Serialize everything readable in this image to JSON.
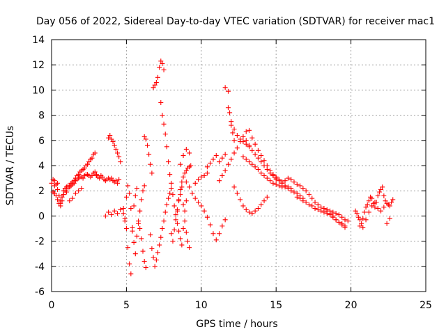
{
  "chart_data": {
    "type": "scatter",
    "title": "Day 056 of 2022, Sidereal Day-to-day VTEC variation (SDTVAR) for receiver mac1",
    "xlabel": "GPS time / hours",
    "ylabel": "SDTVAR / TECUs",
    "xlim": [
      0,
      25
    ],
    "ylim": [
      -6,
      14
    ],
    "xticks": [
      "0",
      "5",
      "10",
      "15",
      "20",
      "25"
    ],
    "yticks": [
      "-6",
      "-4",
      "-2",
      "0",
      "2",
      "4",
      "6",
      "8",
      "10",
      "12",
      "14"
    ],
    "grid": true,
    "marker": "+",
    "color": "#ff0000",
    "series": [
      {
        "name": "mac1",
        "x": [
          0.0,
          0.1,
          0.2,
          0.3,
          0.4,
          0.5,
          0.6,
          0.7,
          0.8,
          0.9,
          1.0,
          1.1,
          1.2,
          1.3,
          1.4,
          1.5,
          1.6,
          1.7,
          1.8,
          1.9,
          2.0,
          2.1,
          2.2,
          2.3,
          2.4,
          2.5,
          2.6,
          2.7,
          2.8,
          2.9,
          3.0,
          3.1,
          3.2,
          3.3,
          3.4,
          3.5,
          3.6,
          3.7,
          3.8,
          3.9,
          4.0,
          4.1,
          4.2,
          4.3,
          4.4,
          4.5,
          0.1,
          0.2,
          0.3,
          0.4,
          0.5,
          0.6,
          0.7,
          0.8,
          0.9,
          1.0,
          1.1,
          1.2,
          1.3,
          1.4,
          1.5,
          1.6,
          1.7,
          1.8,
          1.9,
          2.0,
          2.1,
          2.2,
          2.3,
          2.4,
          2.5,
          2.6,
          2.7,
          2.8,
          2.9,
          3.0,
          0.2,
          0.4,
          0.6,
          0.8,
          1.0,
          1.2,
          1.4,
          1.6,
          1.8,
          2.0,
          3.8,
          3.9,
          4.0,
          4.1,
          4.2,
          4.3,
          4.4,
          4.5,
          4.6,
          3.6,
          3.8,
          4.0,
          4.2,
          4.4,
          4.6,
          4.8,
          4.9,
          5.0,
          5.1,
          5.2,
          5.3,
          5.4,
          5.5,
          5.6,
          5.7,
          5.8,
          5.9,
          6.0,
          6.1,
          6.2,
          6.3,
          4.8,
          4.9,
          5.0,
          5.1,
          5.2,
          5.3,
          5.4,
          5.5,
          5.6,
          5.7,
          5.8,
          5.9,
          6.0,
          6.1,
          6.2,
          6.2,
          6.3,
          6.4,
          6.5,
          6.6,
          6.7,
          6.8,
          6.9,
          7.0,
          7.1,
          7.2,
          7.3,
          7.4,
          7.5,
          7.3,
          7.4,
          7.5,
          7.6,
          7.7,
          7.8,
          7.9,
          8.0,
          8.1,
          8.2,
          8.3,
          8.4,
          8.5,
          8.6,
          8.7,
          8.8,
          8.9,
          9.0,
          6.6,
          6.7,
          6.8,
          6.9,
          7.0,
          7.1,
          7.2,
          7.3,
          7.4,
          7.5,
          7.6,
          7.7,
          7.8,
          7.9,
          8.0,
          8.0,
          8.1,
          8.2,
          8.3,
          8.4,
          8.5,
          8.6,
          8.7,
          8.8,
          8.9,
          9.0,
          9.1,
          9.2,
          8.4,
          8.5,
          8.6,
          8.7,
          8.8,
          8.9,
          9.0,
          9.1,
          9.2,
          9.3,
          8.6,
          8.8,
          9.0,
          9.2,
          9.0,
          9.2,
          9.4,
          9.6,
          9.8,
          10.0,
          10.2,
          10.4,
          10.6,
          10.8,
          11.0,
          11.2,
          11.4,
          11.6,
          9.6,
          9.8,
          10.0,
          10.2,
          10.4,
          10.4,
          10.6,
          10.8,
          11.0,
          11.2,
          11.4,
          11.6,
          11.2,
          11.4,
          11.6,
          11.8,
          12.0,
          12.2,
          12.4,
          12.6,
          12.8,
          13.0,
          13.2,
          13.4,
          13.6,
          13.8,
          14.0,
          14.2,
          14.4,
          14.6,
          14.8,
          15.0,
          11.8,
          11.9,
          12.0,
          12.1,
          12.2,
          11.6,
          11.8,
          12.0,
          12.2,
          12.4,
          12.6,
          12.8,
          13.0,
          13.2,
          12.2,
          12.4,
          12.6,
          12.8,
          13.0,
          13.2,
          13.4,
          13.6,
          13.8,
          14.0,
          14.2,
          14.4,
          12.8,
          13.0,
          13.2,
          13.4,
          13.6,
          13.8,
          14.0,
          14.2,
          14.4,
          14.6,
          14.8,
          15.0,
          15.2,
          15.4,
          15.6,
          15.8,
          16.0,
          16.2,
          16.4,
          16.6,
          16.8,
          13.0,
          13.2,
          13.4,
          13.6,
          13.8,
          14.0,
          14.2,
          14.4,
          14.6,
          14.8,
          15.0,
          15.2,
          15.4,
          15.6,
          15.8,
          16.0,
          14.8,
          15.0,
          15.2,
          15.4,
          15.6,
          15.8,
          16.0,
          16.2,
          16.4,
          16.6,
          16.8,
          17.0,
          17.2,
          17.4,
          17.6,
          17.8,
          18.0,
          18.2,
          18.4,
          18.6,
          18.8,
          19.0,
          19.2,
          19.4,
          19.6,
          16.4,
          16.6,
          16.8,
          17.0,
          17.2,
          17.4,
          17.6,
          17.8,
          18.0,
          18.2,
          18.4,
          18.6,
          18.8,
          19.0,
          19.2,
          19.4,
          19.6,
          18.2,
          18.4,
          18.6,
          18.8,
          19.0,
          19.2,
          19.4,
          19.6,
          19.8,
          20.3,
          20.4,
          20.5,
          20.6,
          20.7,
          20.8,
          20.9,
          21.0,
          21.1,
          21.2,
          21.3,
          21.4,
          21.5,
          21.6,
          21.7,
          21.8,
          21.9,
          22.0,
          22.1,
          22.2,
          22.3,
          22.4,
          22.5,
          22.6,
          22.7,
          22.8,
          20.6,
          20.8,
          21.0,
          21.2,
          21.4,
          21.6,
          21.8,
          22.0,
          22.2,
          22.4,
          22.6
        ],
        "y": [
          2.6,
          2.9,
          2.8,
          2.5,
          2.1,
          1.6,
          1.2,
          1.5,
          2.0,
          2.2,
          2.3,
          2.4,
          2.3,
          2.4,
          2.5,
          2.6,
          2.8,
          2.9,
          3.0,
          3.1,
          3.1,
          3.0,
          3.2,
          3.3,
          3.3,
          3.2,
          3.1,
          3.2,
          3.4,
          3.5,
          3.3,
          3.1,
          3.0,
          3.2,
          3.1,
          2.9,
          2.8,
          2.9,
          3.0,
          2.9,
          3.0,
          2.8,
          2.7,
          2.8,
          2.6,
          2.9,
          1.9,
          1.8,
          1.6,
          1.3,
          1.0,
          0.8,
          1.2,
          1.7,
          2.0,
          1.9,
          2.2,
          2.4,
          2.6,
          2.7,
          2.8,
          3.0,
          3.2,
          3.3,
          3.5,
          3.6,
          3.7,
          3.8,
          4.0,
          4.1,
          4.3,
          4.5,
          4.6,
          4.9,
          5.0,
          3.2,
          2.4,
          2.6,
          1.0,
          1.7,
          1.9,
          1.2,
          1.4,
          1.8,
          2.0,
          2.2,
          6.2,
          6.4,
          6.1,
          5.9,
          5.6,
          5.3,
          5.0,
          4.7,
          4.3,
          0.0,
          0.3,
          0.1,
          0.4,
          0.2,
          0.5,
          0.6,
          -0.2,
          -1.0,
          -2.5,
          -3.8,
          -4.6,
          -1.2,
          0.8,
          1.6,
          2.2,
          -0.4,
          -1.0,
          -1.8,
          -2.8,
          -3.6,
          -4.1,
          0.2,
          -0.4,
          1.5,
          2.4,
          1.8,
          0.6,
          -0.9,
          -2.1,
          -3.0,
          -1.6,
          -0.6,
          0.4,
          1.3,
          2.0,
          2.4,
          6.3,
          6.1,
          5.6,
          4.9,
          4.1,
          3.4,
          10.2,
          10.4,
          10.6,
          11.0,
          11.8,
          12.3,
          12.1,
          11.6,
          9.0,
          8.0,
          7.3,
          6.5,
          5.5,
          4.3,
          3.3,
          2.6,
          1.7,
          0.8,
          0.1,
          -0.6,
          -1.2,
          -1.8,
          -2.3,
          -1.0,
          0.4,
          1.2,
          -1.5,
          -2.6,
          -3.3,
          -4.0,
          -3.5,
          -2.9,
          -2.3,
          -1.7,
          -1.0,
          -0.4,
          0.3,
          0.9,
          1.4,
          1.8,
          2.2,
          -1.4,
          -2.0,
          -1.1,
          -0.3,
          0.5,
          1.2,
          1.7,
          2.3,
          0.9,
          -0.4,
          -1.3,
          -2.0,
          -2.5,
          0.4,
          1.3,
          2.1,
          2.7,
          3.1,
          3.4,
          3.6,
          3.8,
          3.9,
          4.0,
          4.1,
          4.8,
          5.3,
          5.0,
          2.7,
          2.3,
          1.8,
          1.4,
          1.1,
          0.8,
          0.4,
          -0.1,
          -0.7,
          -1.4,
          -1.9,
          -1.4,
          -0.8,
          -0.3,
          2.6,
          2.9,
          3.1,
          3.2,
          3.4,
          3.9,
          4.2,
          4.5,
          4.8,
          4.3,
          4.6,
          4.9,
          2.8,
          3.2,
          3.6,
          4.1,
          4.5,
          5.0,
          5.4,
          5.9,
          6.3,
          6.7,
          6.8,
          6.2,
          5.7,
          5.2,
          4.8,
          4.4,
          4.0,
          3.6,
          3.2,
          2.9,
          9.9,
          8.2,
          7.2,
          6.6,
          6.0,
          10.2,
          8.6,
          7.5,
          6.9,
          6.4,
          6.1,
          5.9,
          5.7,
          5.5,
          2.3,
          1.8,
          1.3,
          0.8,
          0.5,
          0.3,
          0.2,
          0.4,
          0.6,
          0.9,
          1.2,
          1.5,
          4.7,
          4.5,
          4.3,
          4.1,
          3.9,
          3.7,
          3.4,
          3.2,
          3.0,
          2.8,
          2.6,
          2.5,
          2.4,
          2.3,
          2.3,
          2.2,
          2.0,
          1.9,
          1.8,
          1.6,
          1.4,
          6.0,
          5.6,
          5.2,
          4.9,
          4.6,
          4.3,
          4.0,
          3.7,
          3.4,
          3.2,
          3.0,
          2.8,
          2.6,
          2.4,
          2.3,
          2.2,
          3.3,
          3.1,
          2.9,
          2.7,
          2.8,
          3.0,
          2.9,
          2.7,
          2.5,
          2.4,
          2.2,
          2.0,
          1.7,
          1.4,
          1.1,
          0.9,
          0.7,
          0.6,
          0.4,
          0.2,
          0.0,
          -0.3,
          -0.5,
          -0.7,
          -0.9,
          1.5,
          1.4,
          1.2,
          1.1,
          0.9,
          0.8,
          0.6,
          0.5,
          0.4,
          0.3,
          0.2,
          0.1,
          -0.1,
          -0.3,
          -0.5,
          -0.6,
          -0.8,
          0.6,
          0.5,
          0.4,
          0.3,
          0.2,
          0.1,
          -0.1,
          -0.3,
          -0.4,
          0.4,
          0.2,
          -0.1,
          -0.3,
          -0.6,
          -0.2,
          0.3,
          0.7,
          0.9,
          1.2,
          1.5,
          1.4,
          1.0,
          0.7,
          1.1,
          1.6,
          1.9,
          2.1,
          2.3,
          1.6,
          1.2,
          1.0,
          0.9,
          0.8,
          1.1,
          1.3,
          -0.8,
          -0.9,
          -0.3,
          0.3,
          0.8,
          1.1,
          0.6,
          0.4,
          0.7,
          -0.6,
          -0.2
        ]
      }
    ]
  }
}
